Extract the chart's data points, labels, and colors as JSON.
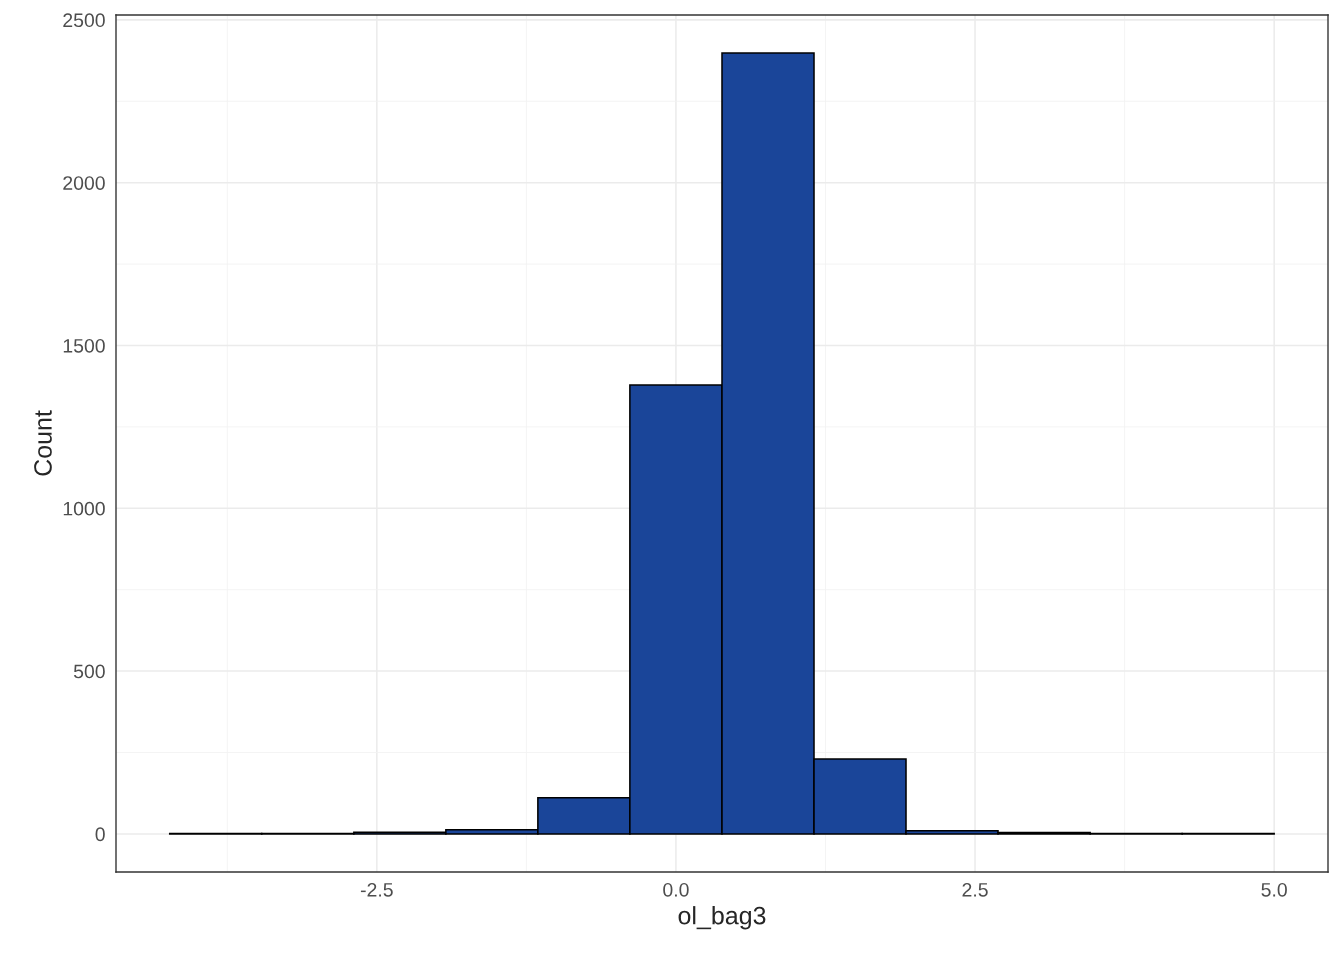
{
  "chart_data": {
    "type": "histogram",
    "xlabel": "ol_bag3",
    "ylabel": "Count",
    "color": "#1a4599",
    "bins": [
      -4.231,
      -3.462,
      -2.692,
      -1.923,
      -1.154,
      -0.385,
      0.385,
      1.154,
      1.923,
      2.692,
      3.462,
      4.231,
      5.0
    ],
    "values": [
      1,
      1,
      5,
      13,
      111,
      1379,
      2398,
      230,
      10,
      4,
      1,
      1
    ],
    "xlim": [
      -4.68,
      5.45
    ],
    "ylim": [
      -117,
      2515
    ],
    "xticks": [
      {
        "value": -2.5,
        "label": "-2.5"
      },
      {
        "value": 0,
        "label": "0.0"
      },
      {
        "value": 2.5,
        "label": "2.5"
      },
      {
        "value": 5,
        "label": "5.0"
      }
    ],
    "yticks": [
      0,
      500,
      1000,
      1500,
      2000,
      2500
    ],
    "grid": true
  }
}
